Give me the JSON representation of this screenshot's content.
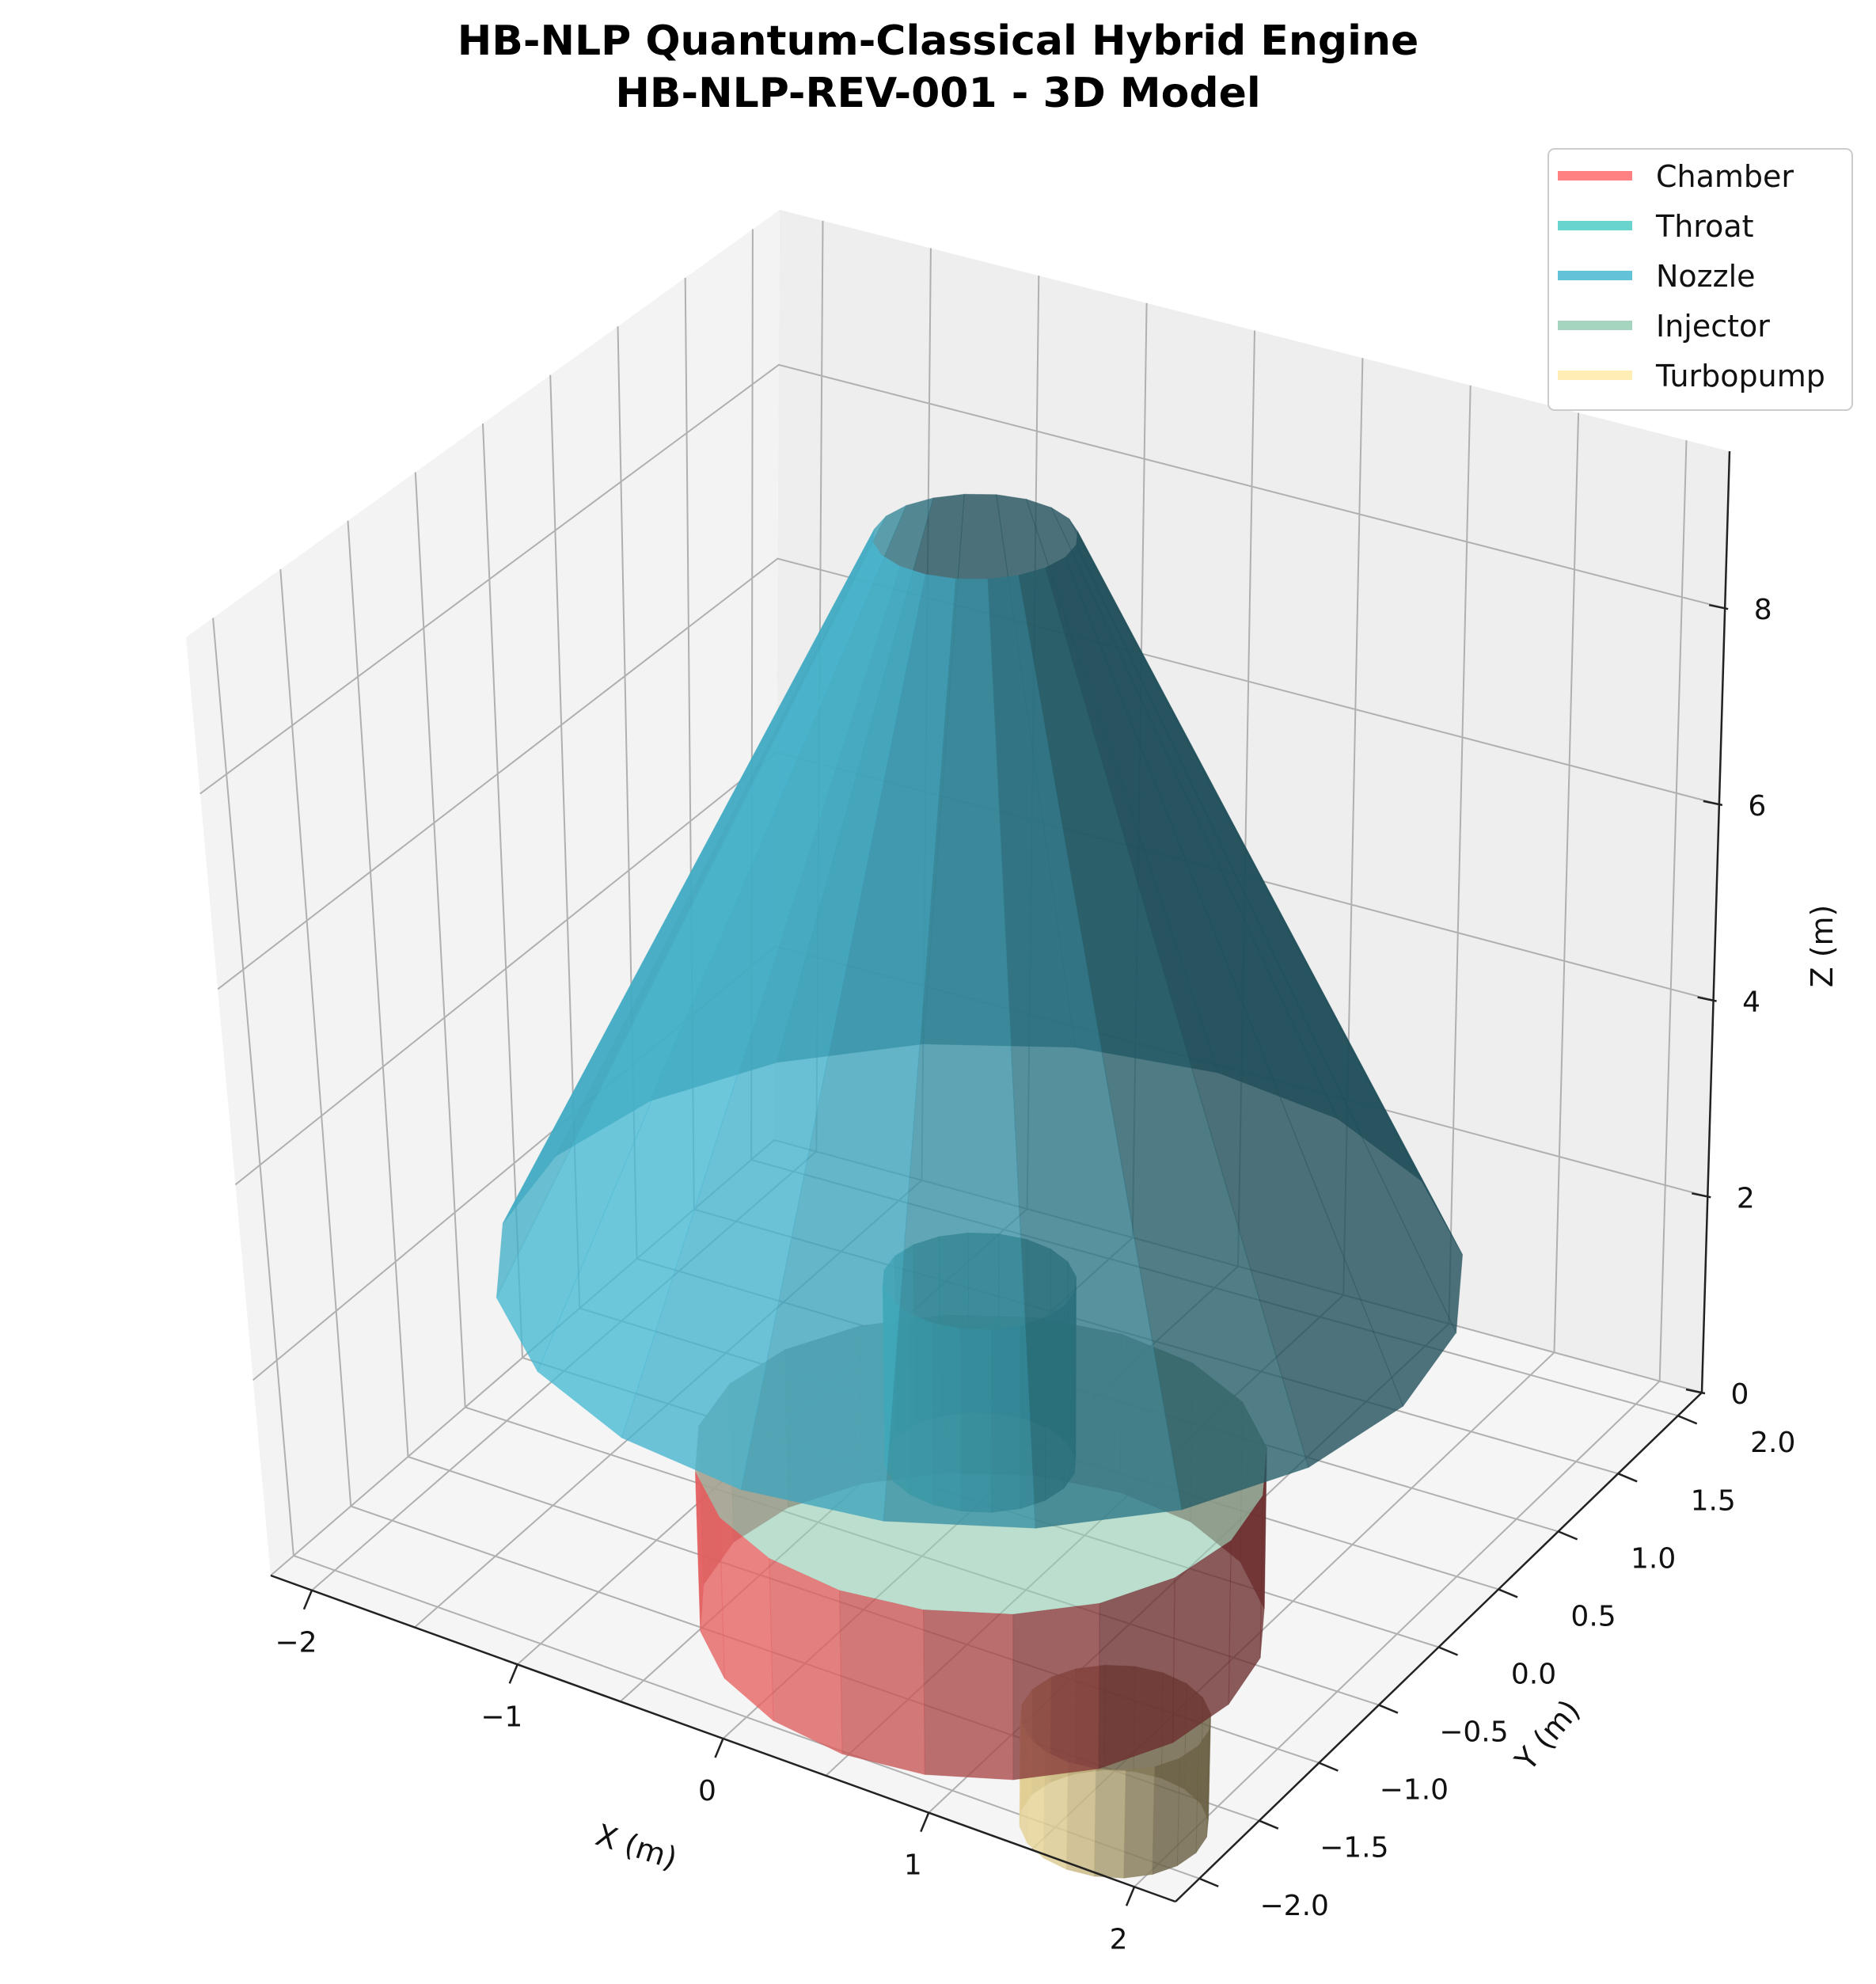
{
  "chart_data": {
    "type": "3d-surface",
    "title": "HB-NLP Quantum-Classical Hybrid Engine",
    "subtitle": "HB-NLP-REV-001 - 3D Model",
    "xlabel": "X (m)",
    "ylabel": "Y (m)",
    "zlabel": "Z (m)",
    "xlim": [
      -2.2,
      2.2
    ],
    "ylim": [
      -2.2,
      2.2
    ],
    "zlim": [
      0,
      9.6
    ],
    "x_ticks": [
      "−2",
      "−1",
      "0",
      "1",
      "2"
    ],
    "y_ticks": [
      "−2.0",
      "−1.5",
      "−1.0",
      "−0.5",
      "0.0",
      "0.5",
      "1.0",
      "1.5",
      "2.0"
    ],
    "z_ticks": [
      "0",
      "2",
      "4",
      "6",
      "8"
    ],
    "grid": true,
    "legend_position": "top-right",
    "components": [
      {
        "name": "Chamber",
        "color": "#FF6B6B",
        "shape": "cylinder",
        "center": [
          0,
          0
        ],
        "radius": 1.2,
        "z_range": [
          -1.2,
          0.4
        ]
      },
      {
        "name": "Throat",
        "color": "#4ECDC4",
        "shape": "cylinder",
        "center": [
          0,
          0
        ],
        "radius": 0.4,
        "z_range": [
          0.4,
          2.2
        ]
      },
      {
        "name": "Nozzle",
        "color": "#45B7D1",
        "shape": "frustum",
        "center": [
          0,
          0
        ],
        "radius_bottom": 2.0,
        "radius_top": 0.4,
        "z_range": [
          2.2,
          9.6
        ]
      },
      {
        "name": "Injector",
        "color": "#96CEB4",
        "shape": "disk",
        "center": [
          0,
          0
        ],
        "radius": 1.2,
        "z_range": [
          0.38,
          0.42
        ]
      },
      {
        "name": "Turbopump",
        "color": "#FFEAA7",
        "shape": "cylinder",
        "center": [
          1.5,
          -1.5
        ],
        "radius": 0.4,
        "z_range": [
          -0.5,
          0.5
        ]
      }
    ]
  }
}
